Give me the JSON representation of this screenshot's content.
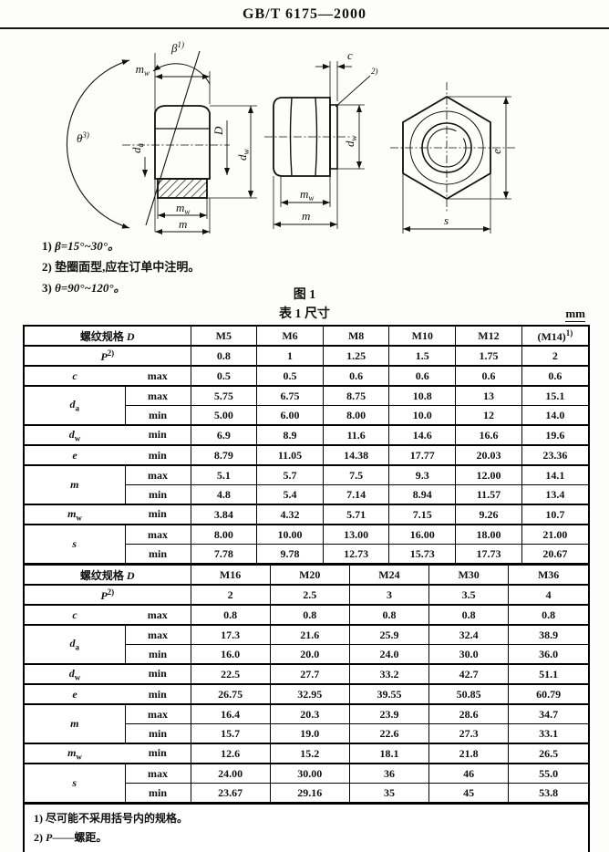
{
  "header": {
    "title": "GB/T 6175—2000"
  },
  "figure": {
    "caption": "图 1",
    "notes": [
      {
        "marker": "1)",
        "text": "β=15°~30°。"
      },
      {
        "marker": "2)",
        "text": "垫圈面型,应在订单中注明。"
      },
      {
        "marker": "3)",
        "text": "θ=90°~120°。"
      }
    ],
    "labels": {
      "beta_base": "β",
      "beta_sup": "1)",
      "theta_base": "θ",
      "theta_sup": "3)",
      "note_ref_sup": "2)",
      "mw_base": "m",
      "mw_sub": "w",
      "da_base": "d",
      "da_sub": "a",
      "dw_base": "d",
      "dw_sub": "w",
      "m": "m",
      "D": "D",
      "c": "c",
      "e": "e",
      "s": "s"
    }
  },
  "table": {
    "caption": "表 1  尺寸",
    "unit": "mm",
    "spec_label": "螺纹规格 ",
    "spec_var": "D",
    "pitch_base": "P",
    "pitch_sup": "2)",
    "limit_max": "max",
    "limit_min": "min",
    "halves": [
      {
        "sizes": [
          {
            "text": "M5"
          },
          {
            "text": "M6"
          },
          {
            "text": "M8"
          },
          {
            "text": "M10"
          },
          {
            "text": "M12"
          },
          {
            "text": "(M14)",
            "sup": "1)"
          }
        ],
        "pitch": [
          "0.8",
          "1",
          "1.25",
          "1.5",
          "1.75",
          "2"
        ],
        "rows": [
          {
            "base": "c",
            "limit": "max",
            "values": [
              "0.5",
              "0.5",
              "0.6",
              "0.6",
              "0.6",
              "0.6"
            ]
          },
          {
            "base": "d",
            "sub": "a",
            "max": [
              "5.75",
              "6.75",
              "8.75",
              "10.8",
              "13",
              "15.1"
            ],
            "min": [
              "5.00",
              "6.00",
              "8.00",
              "10.0",
              "12",
              "14.0"
            ]
          },
          {
            "base": "d",
            "sub": "w",
            "limit": "min",
            "values": [
              "6.9",
              "8.9",
              "11.6",
              "14.6",
              "16.6",
              "19.6"
            ]
          },
          {
            "base": "e",
            "limit": "min",
            "values": [
              "8.79",
              "11.05",
              "14.38",
              "17.77",
              "20.03",
              "23.36"
            ]
          },
          {
            "base": "m",
            "max": [
              "5.1",
              "5.7",
              "7.5",
              "9.3",
              "12.00",
              "14.1"
            ],
            "min": [
              "4.8",
              "5.4",
              "7.14",
              "8.94",
              "11.57",
              "13.4"
            ]
          },
          {
            "base": "m",
            "sub": "w",
            "limit": "min",
            "values": [
              "3.84",
              "4.32",
              "5.71",
              "7.15",
              "9.26",
              "10.7"
            ]
          },
          {
            "base": "s",
            "max": [
              "8.00",
              "10.00",
              "13.00",
              "16.00",
              "18.00",
              "21.00"
            ],
            "min": [
              "7.78",
              "9.78",
              "12.73",
              "15.73",
              "17.73",
              "20.67"
            ]
          }
        ]
      },
      {
        "sizes": [
          {
            "text": "M16"
          },
          {
            "text": "M20"
          },
          {
            "text": "M24"
          },
          {
            "text": "M30"
          },
          {
            "text": "M36"
          }
        ],
        "pitch": [
          "2",
          "2.5",
          "3",
          "3.5",
          "4"
        ],
        "rows": [
          {
            "base": "c",
            "limit": "max",
            "values": [
              "0.8",
              "0.8",
              "0.8",
              "0.8",
              "0.8"
            ]
          },
          {
            "base": "d",
            "sub": "a",
            "max": [
              "17.3",
              "21.6",
              "25.9",
              "32.4",
              "38.9"
            ],
            "min": [
              "16.0",
              "20.0",
              "24.0",
              "30.0",
              "36.0"
            ]
          },
          {
            "base": "d",
            "sub": "w",
            "limit": "min",
            "values": [
              "22.5",
              "27.7",
              "33.2",
              "42.7",
              "51.1"
            ]
          },
          {
            "base": "e",
            "limit": "min",
            "values": [
              "26.75",
              "32.95",
              "39.55",
              "50.85",
              "60.79"
            ]
          },
          {
            "base": "m",
            "max": [
              "16.4",
              "20.3",
              "23.9",
              "28.6",
              "34.7"
            ],
            "min": [
              "15.7",
              "19.0",
              "22.6",
              "27.3",
              "33.1"
            ]
          },
          {
            "base": "m",
            "sub": "w",
            "limit": "min",
            "values": [
              "12.6",
              "15.2",
              "18.1",
              "21.8",
              "26.5"
            ]
          },
          {
            "base": "s",
            "max": [
              "24.00",
              "30.00",
              "36",
              "46",
              "55.0"
            ],
            "min": [
              "23.67",
              "29.16",
              "35",
              "45",
              "53.8"
            ]
          }
        ]
      }
    ],
    "footnotes": [
      {
        "marker": "1)",
        "text": "尽可能不采用括号内的规格。"
      },
      {
        "marker": "2)",
        "pre": "P",
        "text": "——螺距。"
      }
    ]
  }
}
